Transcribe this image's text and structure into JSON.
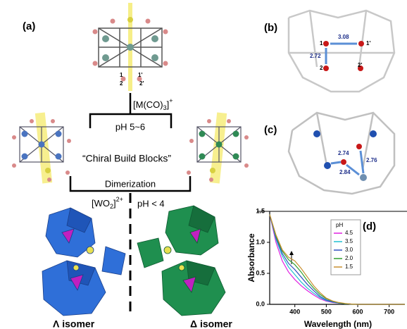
{
  "panels": {
    "a": "(a)",
    "b": "(b)",
    "c": "(c)",
    "d": "(d)"
  },
  "scheme": {
    "top_atom_labels": [
      "1",
      "2",
      "1'",
      "2'"
    ],
    "reagent_1": {
      "main": "[M(CO)",
      "sub": "3",
      "close": "]",
      "sup": "+"
    },
    "condition_1": "pH 5~6",
    "middle_label": "“Chiral Build Blocks”",
    "step_2": "Dimerization",
    "reagent_2": {
      "main": "[WO",
      "sub": "2",
      "close": "]",
      "sup": "2+"
    },
    "condition_2": "pH < 4",
    "left_product": "Λ isomer",
    "right_product": "Δ isomer"
  },
  "panel_b": {
    "atoms": [
      "1",
      "1'",
      "2",
      "2'"
    ],
    "distances": [
      "3.08",
      "2.72"
    ]
  },
  "panel_c": {
    "distances": [
      "2.74",
      "2.84",
      "2.76"
    ]
  },
  "chart_data": {
    "type": "line",
    "xlabel": "Wavelength (nm)",
    "ylabel": "Absorbance",
    "legend_title": "pH",
    "x": [
      320,
      340,
      360,
      380,
      400,
      420,
      440,
      460,
      480,
      500,
      520,
      540,
      560,
      580,
      600,
      650,
      700,
      750
    ],
    "series": [
      {
        "name": "4.5",
        "color": "#e020e0",
        "values": [
          1.45,
          1.0,
          0.7,
          0.52,
          0.4,
          0.3,
          0.22,
          0.15,
          0.09,
          0.05,
          0.03,
          0.02,
          0.01,
          0.005,
          0,
          0,
          0,
          0
        ]
      },
      {
        "name": "3.5",
        "color": "#20c0d0",
        "values": [
          1.45,
          1.05,
          0.78,
          0.6,
          0.48,
          0.36,
          0.26,
          0.18,
          0.11,
          0.06,
          0.035,
          0.02,
          0.01,
          0.005,
          0,
          0,
          0,
          0
        ]
      },
      {
        "name": "3.0",
        "color": "#3050c0",
        "values": [
          1.45,
          1.08,
          0.82,
          0.66,
          0.56,
          0.44,
          0.32,
          0.22,
          0.13,
          0.07,
          0.04,
          0.02,
          0.01,
          0.005,
          0,
          0,
          0,
          0
        ]
      },
      {
        "name": "2.0",
        "color": "#30a030",
        "values": [
          1.45,
          1.1,
          0.86,
          0.72,
          0.64,
          0.52,
          0.38,
          0.26,
          0.16,
          0.09,
          0.05,
          0.025,
          0.01,
          0.005,
          0,
          0,
          0,
          0
        ]
      },
      {
        "name": "1.5",
        "color": "#c89030",
        "values": [
          1.45,
          1.12,
          0.88,
          0.76,
          0.7,
          0.58,
          0.44,
          0.3,
          0.19,
          0.1,
          0.055,
          0.03,
          0.015,
          0.005,
          0,
          0,
          0,
          0
        ]
      }
    ],
    "xlim": [
      320,
      750
    ],
    "ylim": [
      0,
      1.5
    ],
    "xticks": [
      400,
      500,
      600,
      700
    ],
    "yticks": [
      {
        "value": 0,
        "label": "0.0"
      },
      {
        "value": 0.5,
        "label": "0.5"
      },
      {
        "value": 1,
        "label": "1.0"
      },
      {
        "value": 1.5,
        "label": "1.5"
      }
    ]
  }
}
